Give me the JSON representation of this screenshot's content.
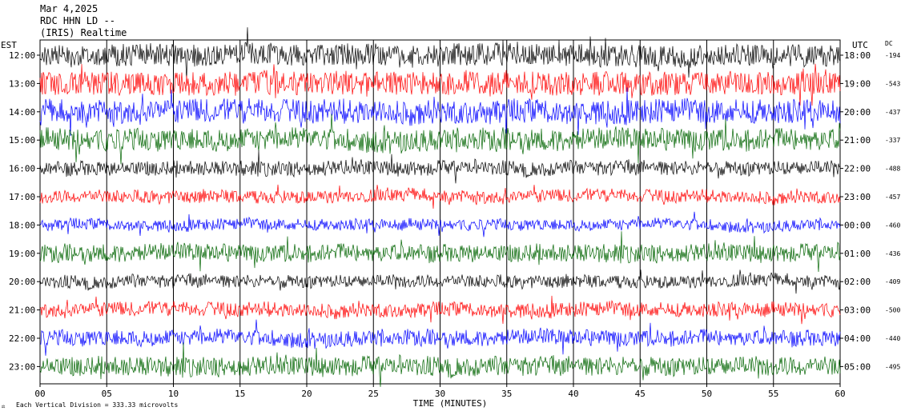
{
  "header": {
    "date": "Mar 4,2025",
    "station": "RDC HHN LD --",
    "source": "(IRIS) Realtime"
  },
  "labels": {
    "left_zone": "EST",
    "right_zone": "UTC",
    "dc": "DC",
    "footer_scale": "Each Vertical Division =  333.33 microvolts"
  },
  "chart_data": {
    "type": "line",
    "title": "",
    "xlabel": "TIME (MINUTES)",
    "ylabel": "",
    "xlim": [
      0,
      60
    ],
    "x_ticks": [
      "00",
      "05",
      "10",
      "15",
      "20",
      "25",
      "30",
      "35",
      "40",
      "45",
      "50",
      "55",
      "60"
    ],
    "grid": true,
    "colors": [
      "#000000",
      "#ff0000",
      "#0000ff",
      "#006400"
    ],
    "traces": [
      {
        "est": "12:00",
        "utc": "18:00",
        "dc": "-194",
        "color": "#000000",
        "amp": 14
      },
      {
        "est": "13:00",
        "utc": "19:00",
        "dc": "-543",
        "color": "#ff0000",
        "amp": 15
      },
      {
        "est": "14:00",
        "utc": "20:00",
        "dc": "-437",
        "color": "#0000ff",
        "amp": 15
      },
      {
        "est": "15:00",
        "utc": "21:00",
        "dc": "-337",
        "color": "#006400",
        "amp": 14
      },
      {
        "est": "16:00",
        "utc": "22:00",
        "dc": "-488",
        "color": "#000000",
        "amp": 9
      },
      {
        "est": "17:00",
        "utc": "23:00",
        "dc": "-457",
        "color": "#ff0000",
        "amp": 8
      },
      {
        "est": "18:00",
        "utc": "00:00",
        "dc": "-460",
        "color": "#0000ff",
        "amp": 7
      },
      {
        "est": "19:00",
        "utc": "01:00",
        "dc": "-436",
        "color": "#006400",
        "amp": 11
      },
      {
        "est": "20:00",
        "utc": "02:00",
        "dc": "-409",
        "color": "#000000",
        "amp": 8
      },
      {
        "est": "21:00",
        "utc": "03:00",
        "dc": "-500",
        "color": "#ff0000",
        "amp": 9
      },
      {
        "est": "22:00",
        "utc": "04:00",
        "dc": "-440",
        "color": "#0000ff",
        "amp": 10
      },
      {
        "est": "23:00",
        "utc": "05:00",
        "dc": "-495",
        "color": "#006400",
        "amp": 12
      }
    ]
  }
}
